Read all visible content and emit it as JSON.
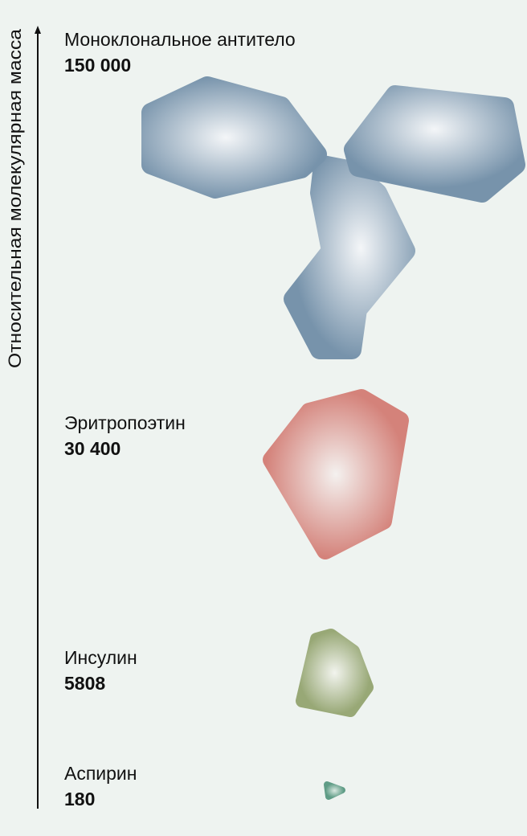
{
  "axis_label": "Относительная молекулярная масса",
  "molecules": [
    {
      "name": "Моноклональное антитело",
      "mass": "150 000"
    },
    {
      "name": "Эритропоэтин",
      "mass": "30 400"
    },
    {
      "name": "Инсулин",
      "mass": "5808"
    },
    {
      "name": "Аспирин",
      "mass": "180"
    }
  ]
}
